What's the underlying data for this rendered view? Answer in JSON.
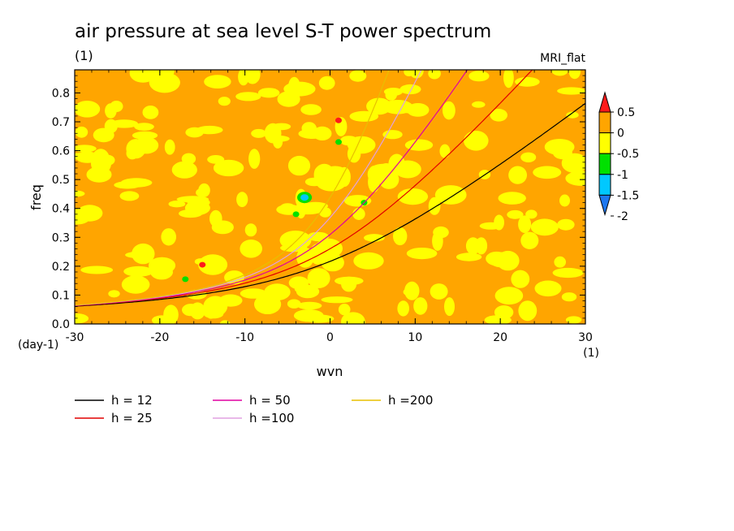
{
  "chart_data": {
    "type": "heatmap",
    "title": "air pressure at sea level S-T power spectrum",
    "subtitle": "(1)",
    "model_label": "MRI_flat",
    "xlabel": "wvn",
    "xunit": "(1)",
    "ylabel": "freq",
    "yunit": "(day-1)",
    "xlim": [
      -30,
      30
    ],
    "ylim": [
      0,
      0.88
    ],
    "xticks": [
      -30,
      -20,
      -10,
      0,
      10,
      20,
      30
    ],
    "yticks": [
      0.0,
      0.1,
      0.2,
      0.3,
      0.4,
      0.5,
      0.6,
      0.7,
      0.8
    ],
    "ytick_labels": [
      "0.0",
      "0.1",
      "0.2",
      "0.3",
      "0.4",
      "0.5",
      "0.6",
      "0.7",
      "0.8"
    ],
    "colorbar": {
      "levels": [
        -2,
        -1.5,
        -1,
        -0.5,
        0,
        0.5
      ],
      "labels": [
        "-2",
        "-1.5",
        "-1",
        "-0.5",
        "0",
        "0.5"
      ],
      "colors": [
        "#1e78f0",
        "#00c8ff",
        "#00e000",
        "#ffff00",
        "#ffa500",
        "#ff1a1a"
      ]
    },
    "field_note_colors": {
      "low": "#ffff00",
      "high": "#ffa500"
    },
    "features": [
      {
        "wvn": 1.0,
        "freq": 0.705,
        "level": 0.5
      },
      {
        "wvn": -15.0,
        "freq": 0.205,
        "level": 0.5
      },
      {
        "wvn": -3.0,
        "freq": 0.438,
        "level": -1.5
      },
      {
        "wvn": -4.0,
        "freq": 0.38,
        "level": -1
      },
      {
        "wvn": 4.0,
        "freq": 0.42,
        "level": -1
      },
      {
        "wvn": 1.0,
        "freq": 0.63,
        "level": -1
      },
      {
        "wvn": -17.0,
        "freq": 0.155,
        "level": -1
      }
    ],
    "series": [
      {
        "name": "h = 12",
        "h": 12,
        "color": "#000000"
      },
      {
        "name": "h = 25",
        "h": 25,
        "color": "#e00000"
      },
      {
        "name": "h = 50",
        "h": 50,
        "color": "#e000a0"
      },
      {
        "name": "h =100",
        "h": 100,
        "color": "#e0a0e0"
      },
      {
        "name": "h =200",
        "h": 200,
        "color": "#e8c000"
      }
    ]
  }
}
